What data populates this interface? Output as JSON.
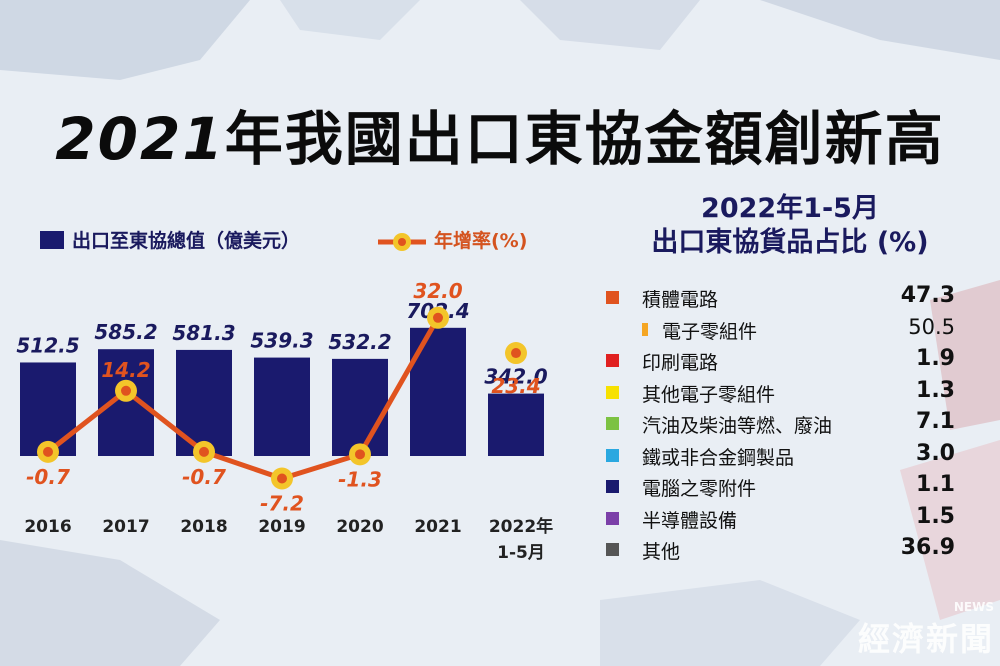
{
  "title": {
    "year": "2021",
    "rest": "年我國出口東協金額創新高"
  },
  "legend": {
    "bar": "出口至東協總值（億美元）",
    "line": "年增率(%)"
  },
  "colors": {
    "bar": "#1a1a6e",
    "line": "#e0531f",
    "marker_fill": "#f3c52a",
    "marker_center": "#e0531f"
  },
  "chart_data": {
    "type": "bar",
    "categories": [
      "2016",
      "2017",
      "2018",
      "2019",
      "2020",
      "2021",
      "2022年\n1-5月"
    ],
    "series": [
      {
        "name": "出口至東協總值（億美元）",
        "type": "bar",
        "values": [
          512.5,
          585.2,
          581.3,
          539.3,
          532.2,
          702.4,
          342.0
        ]
      },
      {
        "name": "年增率(%)",
        "type": "line",
        "values": [
          -0.7,
          14.2,
          -0.7,
          -7.2,
          -1.3,
          32.0,
          23.4
        ]
      }
    ],
    "value_labels": [
      "512.5",
      "585.2",
      "581.3",
      "539.3",
      "532.2",
      "702.4",
      "342.0"
    ],
    "rate_labels": [
      "-0.7",
      "14.2",
      "-0.7",
      "-7.2",
      "-1.3",
      "32.0",
      "23.4"
    ]
  },
  "share": {
    "title_line1": "2022年1-5月",
    "title_line2": "出口東協貨品占比 (%)",
    "items": [
      {
        "name": "積體電路",
        "value": "47.3",
        "color": "#e0531f",
        "sub": false
      },
      {
        "name": "電子零組件",
        "value": "50.5",
        "color": "#f5a623",
        "sub": true
      },
      {
        "name": "印刷電路",
        "value": "1.9",
        "color": "#e02020",
        "sub": false
      },
      {
        "name": "其他電子零組件",
        "value": "1.3",
        "color": "#f7e100",
        "sub": false
      },
      {
        "name": "汽油及柴油等燃、廢油",
        "value": "7.1",
        "color": "#7cc242",
        "sub": false
      },
      {
        "name": "鐵或非合金鋼製品",
        "value": "3.0",
        "color": "#2aa8e0",
        "sub": false
      },
      {
        "name": "電腦之零附件",
        "value": "1.1",
        "color": "#1a1a6e",
        "sub": false
      },
      {
        "name": "半導體設備",
        "value": "1.5",
        "color": "#7b3fa8",
        "sub": false
      },
      {
        "name": "其他",
        "value": "36.9",
        "color": "#555555",
        "sub": false
      }
    ]
  },
  "logo": {
    "small": "NEWS",
    "big": "經濟新聞"
  }
}
